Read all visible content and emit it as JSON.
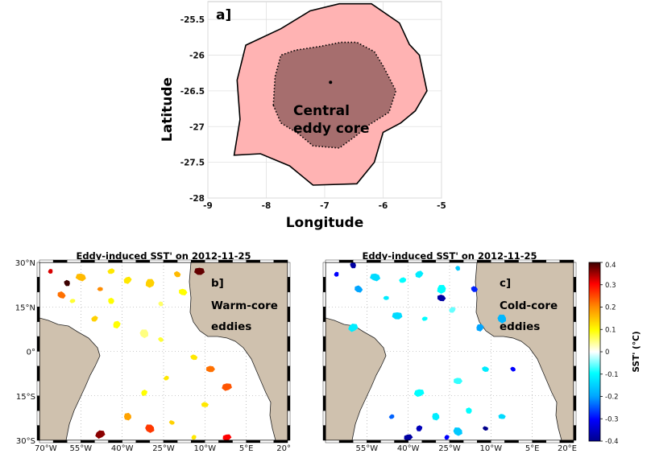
{
  "chart_data": [
    {
      "panel": "a]",
      "type": "contour",
      "xlabel": "Longitude",
      "ylabel": "Latitude",
      "xlim": [
        -9,
        -5
      ],
      "ylim": [
        -28,
        -25.25
      ],
      "xticks": [
        "-9",
        "-8",
        "-7",
        "-6",
        "-5"
      ],
      "yticks": [
        "-25.5",
        "-26",
        "-26.5",
        "-27",
        "-27.5",
        "-28"
      ],
      "annotation": [
        "Central",
        "eddy core"
      ],
      "center": [
        -6.9,
        -26.38
      ],
      "outer_edge": [
        [
          -8.55,
          -27.4
        ],
        [
          -8.45,
          -26.9
        ],
        [
          -8.5,
          -26.35
        ],
        [
          -8.35,
          -25.86
        ],
        [
          -7.75,
          -25.63
        ],
        [
          -7.25,
          -25.38
        ],
        [
          -6.75,
          -25.28
        ],
        [
          -6.2,
          -25.28
        ],
        [
          -5.72,
          -25.55
        ],
        [
          -5.55,
          -25.85
        ],
        [
          -5.38,
          -26.0
        ],
        [
          -5.25,
          -26.5
        ],
        [
          -5.45,
          -26.78
        ],
        [
          -5.7,
          -26.95
        ],
        [
          -6.0,
          -27.08
        ],
        [
          -6.15,
          -27.5
        ],
        [
          -6.45,
          -27.8
        ],
        [
          -7.2,
          -27.82
        ],
        [
          -7.6,
          -27.55
        ],
        [
          -8.1,
          -27.38
        ]
      ],
      "core_edge": [
        [
          -7.88,
          -26.7
        ],
        [
          -7.85,
          -26.3
        ],
        [
          -7.75,
          -26.0
        ],
        [
          -7.5,
          -25.93
        ],
        [
          -7.1,
          -25.88
        ],
        [
          -6.72,
          -25.82
        ],
        [
          -6.45,
          -25.82
        ],
        [
          -6.15,
          -25.95
        ],
        [
          -6.0,
          -26.15
        ],
        [
          -5.78,
          -26.5
        ],
        [
          -5.9,
          -26.8
        ],
        [
          -6.25,
          -26.98
        ],
        [
          -6.45,
          -27.12
        ],
        [
          -6.75,
          -27.3
        ],
        [
          -7.2,
          -27.27
        ],
        [
          -7.45,
          -27.1
        ],
        [
          -7.75,
          -26.95
        ]
      ]
    },
    {
      "panel": "b]",
      "type": "map",
      "title": "Eddy-induced SST' on 2012-11-25",
      "annotation": [
        "Warm-core",
        "eddies"
      ],
      "lon_ticks": [
        "70°W",
        "55°W",
        "40°W",
        "25°W",
        "10°W",
        "5°E",
        "20°"
      ],
      "lat_ticks": [
        "30°N",
        "15°N",
        "0°",
        "15°S",
        "30°S"
      ],
      "xlim": [
        -70,
        20
      ],
      "ylim": [
        -30,
        30
      ],
      "eddies": [
        [
          -66,
          27,
          0.32
        ],
        [
          -60,
          23,
          0.4
        ],
        [
          -62,
          19,
          0.22
        ],
        [
          -55,
          25,
          0.16
        ],
        [
          -48,
          21,
          0.2
        ],
        [
          -44,
          27,
          0.12
        ],
        [
          -38,
          24,
          0.12
        ],
        [
          -30,
          23,
          0.14
        ],
        [
          -26,
          16,
          0.06
        ],
        [
          -20,
          26,
          0.16
        ],
        [
          -18,
          20,
          0.1
        ],
        [
          -12,
          27,
          0.38
        ],
        [
          -58,
          17,
          0.08
        ],
        [
          -50,
          11,
          0.14
        ],
        [
          -42,
          9,
          0.1
        ],
        [
          -32,
          6,
          0.05
        ],
        [
          -26,
          4,
          0.08
        ],
        [
          -14,
          -2,
          0.12
        ],
        [
          -8,
          -6,
          0.22
        ],
        [
          -2,
          -12,
          0.24
        ],
        [
          -24,
          -9,
          0.12
        ],
        [
          -32,
          -14,
          0.1
        ],
        [
          -38,
          -22,
          0.18
        ],
        [
          -30,
          -26,
          0.26
        ],
        [
          -22,
          -24,
          0.14
        ],
        [
          -10,
          -18,
          0.12
        ],
        [
          -2,
          -29,
          0.3
        ],
        [
          -48,
          -28,
          0.36
        ],
        [
          -14,
          -29,
          0.12
        ],
        [
          -44,
          17,
          0.1
        ]
      ]
    },
    {
      "panel": "c]",
      "type": "map",
      "title": "Eddy-induced SST' on 2012-11-25",
      "annotation": [
        "Cold-core",
        "eddies"
      ],
      "lon_ticks": [
        "55°W",
        "40°W",
        "25°W",
        "10°W",
        "5°E",
        "20°E"
      ],
      "xlim": [
        -70,
        20
      ],
      "ylim": [
        -30,
        30
      ],
      "colorbar": {
        "label": "SST' (°C)",
        "ticks": [
          "0.4",
          "0.3",
          "0.2",
          "0.1",
          "0",
          "-0.1",
          "-0.2",
          "-0.3",
          "-0.4"
        ],
        "range": [
          -0.4,
          0.4
        ]
      },
      "eddies": [
        [
          -66,
          26,
          -0.3
        ],
        [
          -60,
          29,
          -0.38
        ],
        [
          -58,
          21,
          -0.2
        ],
        [
          -52,
          25,
          -0.14
        ],
        [
          -48,
          18,
          -0.12
        ],
        [
          -42,
          24,
          -0.1
        ],
        [
          -36,
          26,
          -0.12
        ],
        [
          -28,
          21,
          -0.1
        ],
        [
          -22,
          28,
          -0.16
        ],
        [
          -16,
          21,
          -0.28
        ],
        [
          -28,
          18,
          -0.38
        ],
        [
          -44,
          12,
          -0.14
        ],
        [
          -34,
          11,
          -0.1
        ],
        [
          -24,
          14,
          -0.06
        ],
        [
          -14,
          8,
          -0.2
        ],
        [
          -6,
          11,
          -0.18
        ],
        [
          -2,
          -6,
          -0.3
        ],
        [
          -12,
          -6,
          -0.12
        ],
        [
          -22,
          -10,
          -0.08
        ],
        [
          -36,
          -14,
          -0.1
        ],
        [
          -46,
          -22,
          -0.24
        ],
        [
          -36,
          -26,
          -0.36
        ],
        [
          -30,
          -22,
          -0.12
        ],
        [
          -22,
          -27,
          -0.16
        ],
        [
          -12,
          -26,
          -0.4
        ],
        [
          -6,
          -22,
          -0.14
        ],
        [
          -40,
          -29,
          -0.38
        ],
        [
          -60,
          8,
          -0.12
        ],
        [
          -26,
          -29,
          -0.3
        ],
        [
          -18,
          -20,
          -0.1
        ]
      ]
    }
  ]
}
